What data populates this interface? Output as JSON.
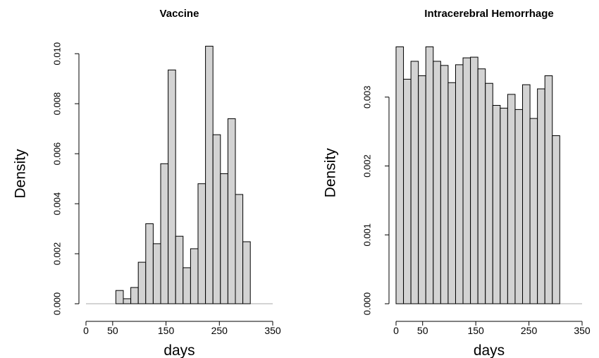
{
  "chart_data": [
    {
      "type": "histogram",
      "title": "Vaccine",
      "xlabel": "days",
      "ylabel": "Density",
      "color": "#d3d3d3",
      "bins": [
        56,
        70,
        84,
        98,
        112,
        126,
        140,
        154,
        168,
        182,
        196,
        210,
        224,
        238,
        252,
        266,
        280,
        294,
        308
      ],
      "values": [
        0.00053,
        0.0002,
        0.00065,
        0.00166,
        0.0032,
        0.0024,
        0.0056,
        0.00935,
        0.0027,
        0.00144,
        0.0022,
        0.0048,
        0.0103,
        0.00676,
        0.0052,
        0.0074,
        0.00437,
        0.00248
      ],
      "xlim": [
        0,
        350
      ],
      "ylim": [
        0,
        0.0104
      ],
      "xticks": [
        0,
        50,
        150,
        250,
        350
      ],
      "yticks": [
        {
          "value": 0,
          "label": "0.000"
        },
        {
          "value": 0.002,
          "label": "0.002"
        },
        {
          "value": 0.004,
          "label": "0.004"
        },
        {
          "value": 0.006,
          "label": "0.006"
        },
        {
          "value": 0.008,
          "label": "0.008"
        },
        {
          "value": 0.01,
          "label": "0.010"
        }
      ]
    },
    {
      "type": "histogram",
      "title": "Intracerebral Hemorrhage",
      "xlabel": "days",
      "ylabel": "Density",
      "color": "#d3d3d3",
      "bins": [
        0,
        14,
        28,
        42,
        56,
        70,
        84,
        98,
        112,
        126,
        140,
        154,
        168,
        182,
        196,
        210,
        224,
        238,
        252,
        266,
        280,
        294,
        308
      ],
      "values": [
        0.00373,
        0.00326,
        0.00352,
        0.00331,
        0.00373,
        0.00352,
        0.00346,
        0.00321,
        0.00347,
        0.00357,
        0.00358,
        0.00341,
        0.0032,
        0.00288,
        0.00284,
        0.00304,
        0.00282,
        0.00318,
        0.00269,
        0.00312,
        0.00331,
        0.00244
      ],
      "xlim": [
        0,
        350
      ],
      "ylim": [
        0,
        0.0038
      ],
      "xticks": [
        0,
        50,
        150,
        250,
        350
      ],
      "yticks": [
        {
          "value": 0,
          "label": "0.000"
        },
        {
          "value": 0.001,
          "label": "0.001"
        },
        {
          "value": 0.002,
          "label": "0.002"
        },
        {
          "value": 0.003,
          "label": "0.003"
        }
      ]
    }
  ]
}
